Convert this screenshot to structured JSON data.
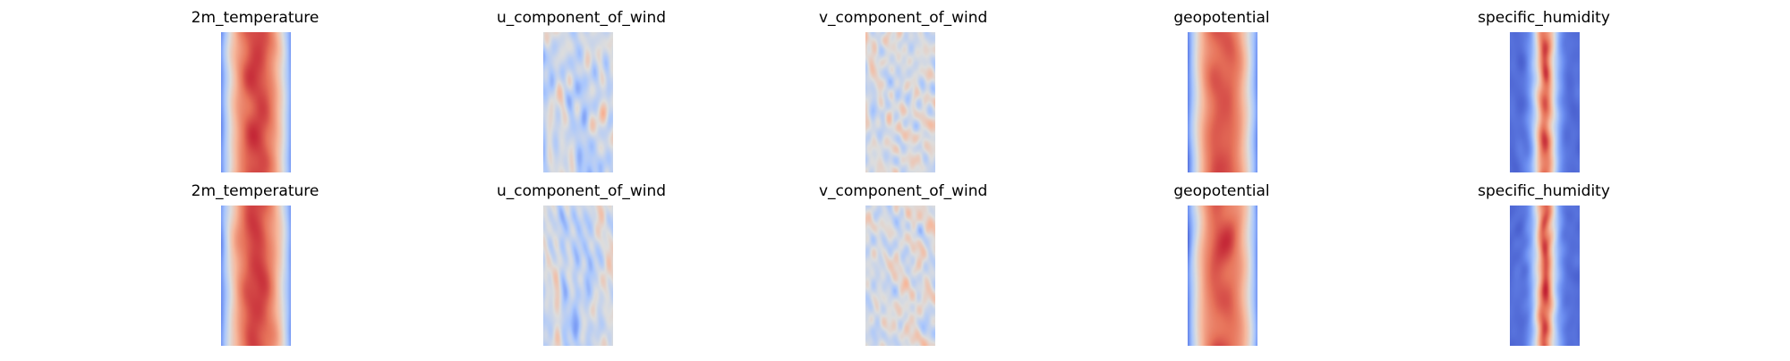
{
  "figure": {
    "rows": [
      {
        "panels": [
          {
            "title": "2m_temperature",
            "field": "temperature",
            "colormap": "coolwarm"
          },
          {
            "title": "u_component_of_wind",
            "field": "u_wind",
            "colormap": "coolwarm"
          },
          {
            "title": "v_component_of_wind",
            "field": "v_wind",
            "colormap": "coolwarm"
          },
          {
            "title": "geopotential",
            "field": "geopotential",
            "colormap": "coolwarm"
          },
          {
            "title": "specific_humidity",
            "field": "humidity",
            "colormap": "coolwarm"
          }
        ]
      },
      {
        "panels": [
          {
            "title": "2m_temperature",
            "field": "temperature",
            "colormap": "coolwarm"
          },
          {
            "title": "u_component_of_wind",
            "field": "u_wind",
            "colormap": "coolwarm"
          },
          {
            "title": "v_component_of_wind",
            "field": "v_wind",
            "colormap": "coolwarm"
          },
          {
            "title": "geopotential",
            "field": "geopotential",
            "colormap": "coolwarm"
          },
          {
            "title": "specific_humidity",
            "field": "humidity",
            "colormap": "coolwarm"
          }
        ]
      }
    ],
    "colormap_stops": [
      "#3b4cc0",
      "#6f92f3",
      "#aac7fd",
      "#dddddd",
      "#f7b89c",
      "#e7745b",
      "#b40426"
    ]
  }
}
